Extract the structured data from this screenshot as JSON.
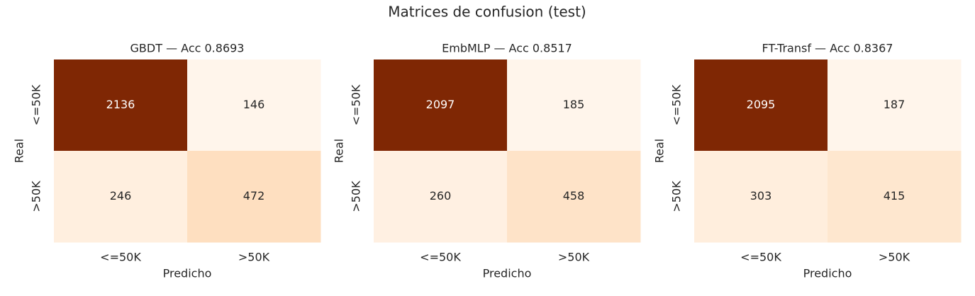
{
  "title": "Matrices de confusion (test)",
  "chart_data": [
    {
      "type": "heatmap",
      "title": "GBDT — Acc 0.8693",
      "xlabel": "Predicho",
      "ylabel": "Real",
      "x_categories": [
        "<=50K",
        ">50K"
      ],
      "y_categories": [
        "<=50K",
        ">50K"
      ],
      "values": [
        [
          2136,
          146
        ],
        [
          246,
          472
        ]
      ],
      "colormap": "Oranges"
    },
    {
      "type": "heatmap",
      "title": "EmbMLP — Acc 0.8517",
      "xlabel": "Predicho",
      "ylabel": "Real",
      "x_categories": [
        "<=50K",
        ">50K"
      ],
      "y_categories": [
        "<=50K",
        ">50K"
      ],
      "values": [
        [
          2097,
          185
        ],
        [
          260,
          458
        ]
      ],
      "colormap": "Oranges"
    },
    {
      "type": "heatmap",
      "title": "FT-Transf — Acc 0.8367",
      "xlabel": "Predicho",
      "ylabel": "Real",
      "x_categories": [
        "<=50K",
        ">50K"
      ],
      "y_categories": [
        "<=50K",
        ">50K"
      ],
      "values": [
        [
          2095,
          187
        ],
        [
          303,
          415
        ]
      ],
      "colormap": "Oranges"
    }
  ]
}
